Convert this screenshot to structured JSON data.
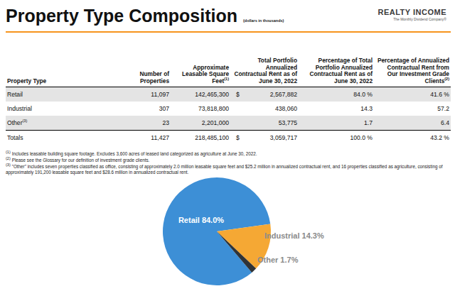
{
  "header": {
    "title": "Property Type Composition",
    "subtitle": "(dollars in thousands)",
    "logo": "REALTY INCOME",
    "tagline": "The Monthly Dividend Company®"
  },
  "table": {
    "columns": [
      {
        "text": "Property Type"
      },
      {
        "text": "Number of Properties"
      },
      {
        "text": "Approximate Leasable Square Feet",
        "note": "(1)"
      },
      {
        "text": "Total Portfolio Annualized Contractual Rent as of June 30, 2022"
      },
      {
        "text": "Percentage of Total Portfolio Annualized Contractual Rent as of June 30, 2022"
      },
      {
        "text": "Percentage of Annualized Contractual Rent from Our Investment Grade Clients",
        "note": "(2)"
      }
    ],
    "rows": [
      {
        "cells": [
          "Retail",
          "11,097",
          "142,465,300",
          "2,567,882",
          "84.0 %",
          "41.6 %"
        ],
        "prefix": "$"
      },
      {
        "cells": [
          "Industrial",
          "307",
          "73,818,800",
          "438,060",
          "14.3",
          "57.2"
        ]
      },
      {
        "cells": [
          "Other",
          "23",
          "2,201,000",
          "53,775",
          "1.7",
          "6.4"
        ],
        "note": "(3)"
      },
      {
        "cells": [
          "Totals",
          "11,427",
          "218,485,100",
          "3,059,717",
          "100.0 %",
          "43.2 %"
        ],
        "prefix": "$"
      }
    ]
  },
  "footnotes": [
    {
      "note": "(1)",
      "text": "Includes leasable building square footage. Excludes 3,600 acres of leased land categorized as agriculture at June 30, 2022."
    },
    {
      "note": "(2)",
      "text": "Please see the Glossary for our definition of investment grade clients."
    },
    {
      "note": "(3)",
      "text": "\"Other\" includes seven properties classified as office, consisting of approximately 2.0 million leasable square feet and $25.2 million in annualized contractual rent, and 16 properties classified as agriculture, consisting of approximately 191,200 leasable square feet and $28.6 million in annualized contractual rent."
    }
  ],
  "chart_data": {
    "type": "pie",
    "categories": [
      "Retail",
      "Industrial",
      "Other"
    ],
    "values": [
      84.0,
      14.3,
      1.7
    ],
    "value_labels": [
      "84.0%",
      "14.3%",
      "1.7%"
    ],
    "colors": [
      "#3d8fd6",
      "#f5a834",
      "#2f3337"
    ],
    "data_labels": true
  }
}
